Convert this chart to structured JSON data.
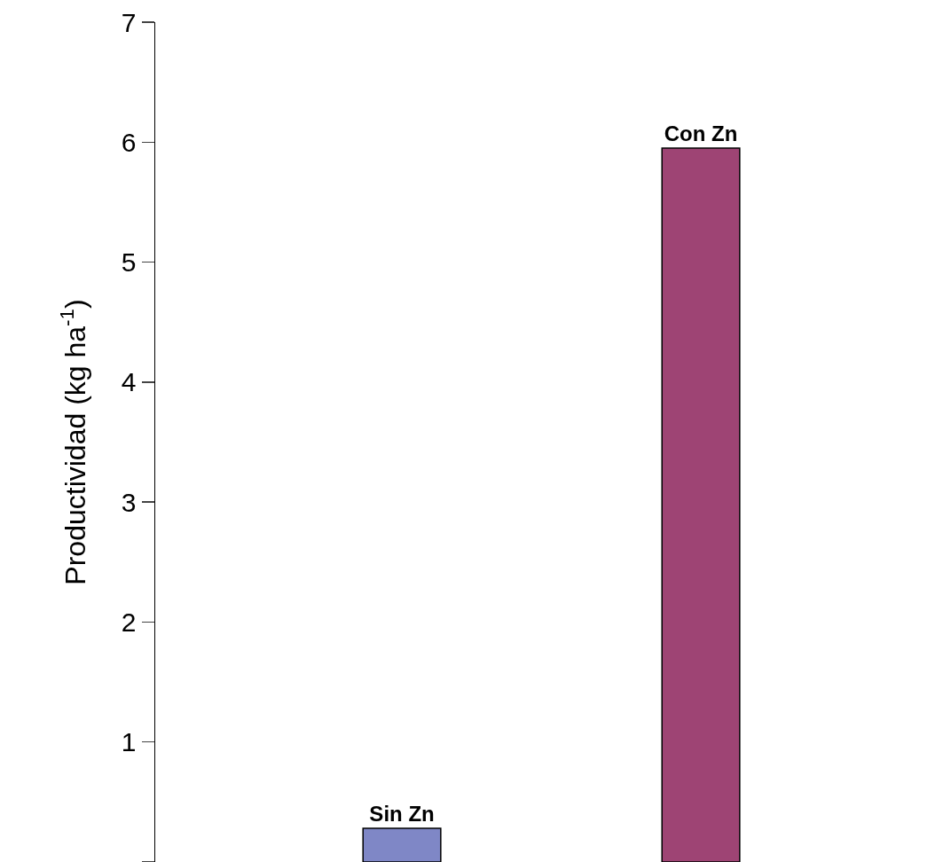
{
  "chart_data": {
    "type": "bar",
    "ylabel": "Productividad (kg ha$^{-1}$)",
    "categories": [
      "Sin Zn",
      "Con Zn"
    ],
    "values": [
      0.28,
      5.95
    ],
    "colors": [
      "#7f87c6",
      "#9e4474"
    ],
    "ylim": [
      0,
      7
    ],
    "yticks": [
      {
        "value": 0,
        "label": null
      },
      1,
      2,
      3,
      4,
      5,
      6,
      7
    ],
    "grid": false,
    "tick_labels": "y"
  }
}
